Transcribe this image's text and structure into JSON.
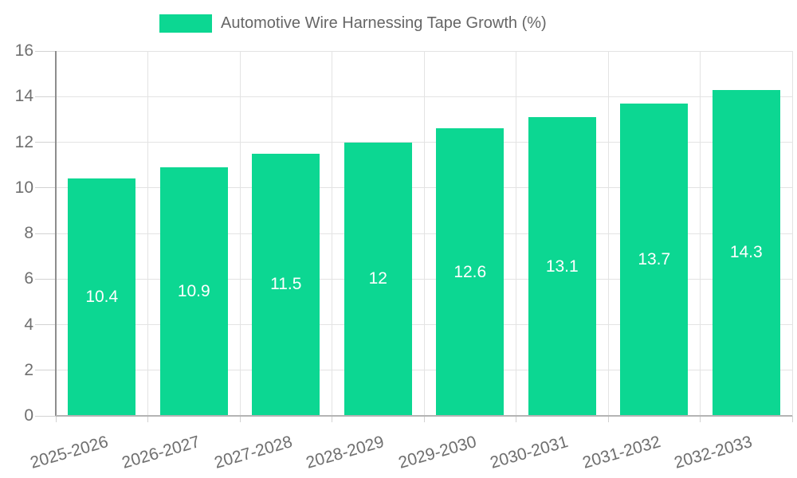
{
  "legend": {
    "label": "Automotive Wire Harnessing Tape Growth (%)"
  },
  "chart_data": {
    "type": "bar",
    "title": "Automotive Wire Harnessing Tape Growth (%)",
    "series_name": "Automotive Wire Harnessing Tape Growth (%)",
    "categories": [
      "2025-2026",
      "2026-2027",
      "2027-2028",
      "2028-2029",
      "2029-2030",
      "2030-2031",
      "2031-2032",
      "2032-2033"
    ],
    "values": [
      10.4,
      10.9,
      11.5,
      12,
      12.6,
      13.1,
      13.7,
      14.3
    ],
    "value_labels": [
      "10.4",
      "10.9",
      "11.5",
      "12",
      "12.6",
      "13.1",
      "13.7",
      "14.3"
    ],
    "xlabel": "",
    "ylabel": "",
    "ylim": [
      0,
      16
    ],
    "ytick_step": 2,
    "ytick_labels": [
      "0",
      "2",
      "4",
      "6",
      "8",
      "10",
      "12",
      "14",
      "16"
    ],
    "grid": true,
    "legend_position": "top",
    "colors": {
      "bar": "#0cd792",
      "grid": "#e3e3e3",
      "tick": "#d2d2d2",
      "axis_y": "#8d8d8d",
      "axis_x": "#b4b4b4",
      "tick_label": "#6f6f6f",
      "legend_text": "#666666",
      "value_label": "#ffffff",
      "background": "#ffffff"
    }
  }
}
